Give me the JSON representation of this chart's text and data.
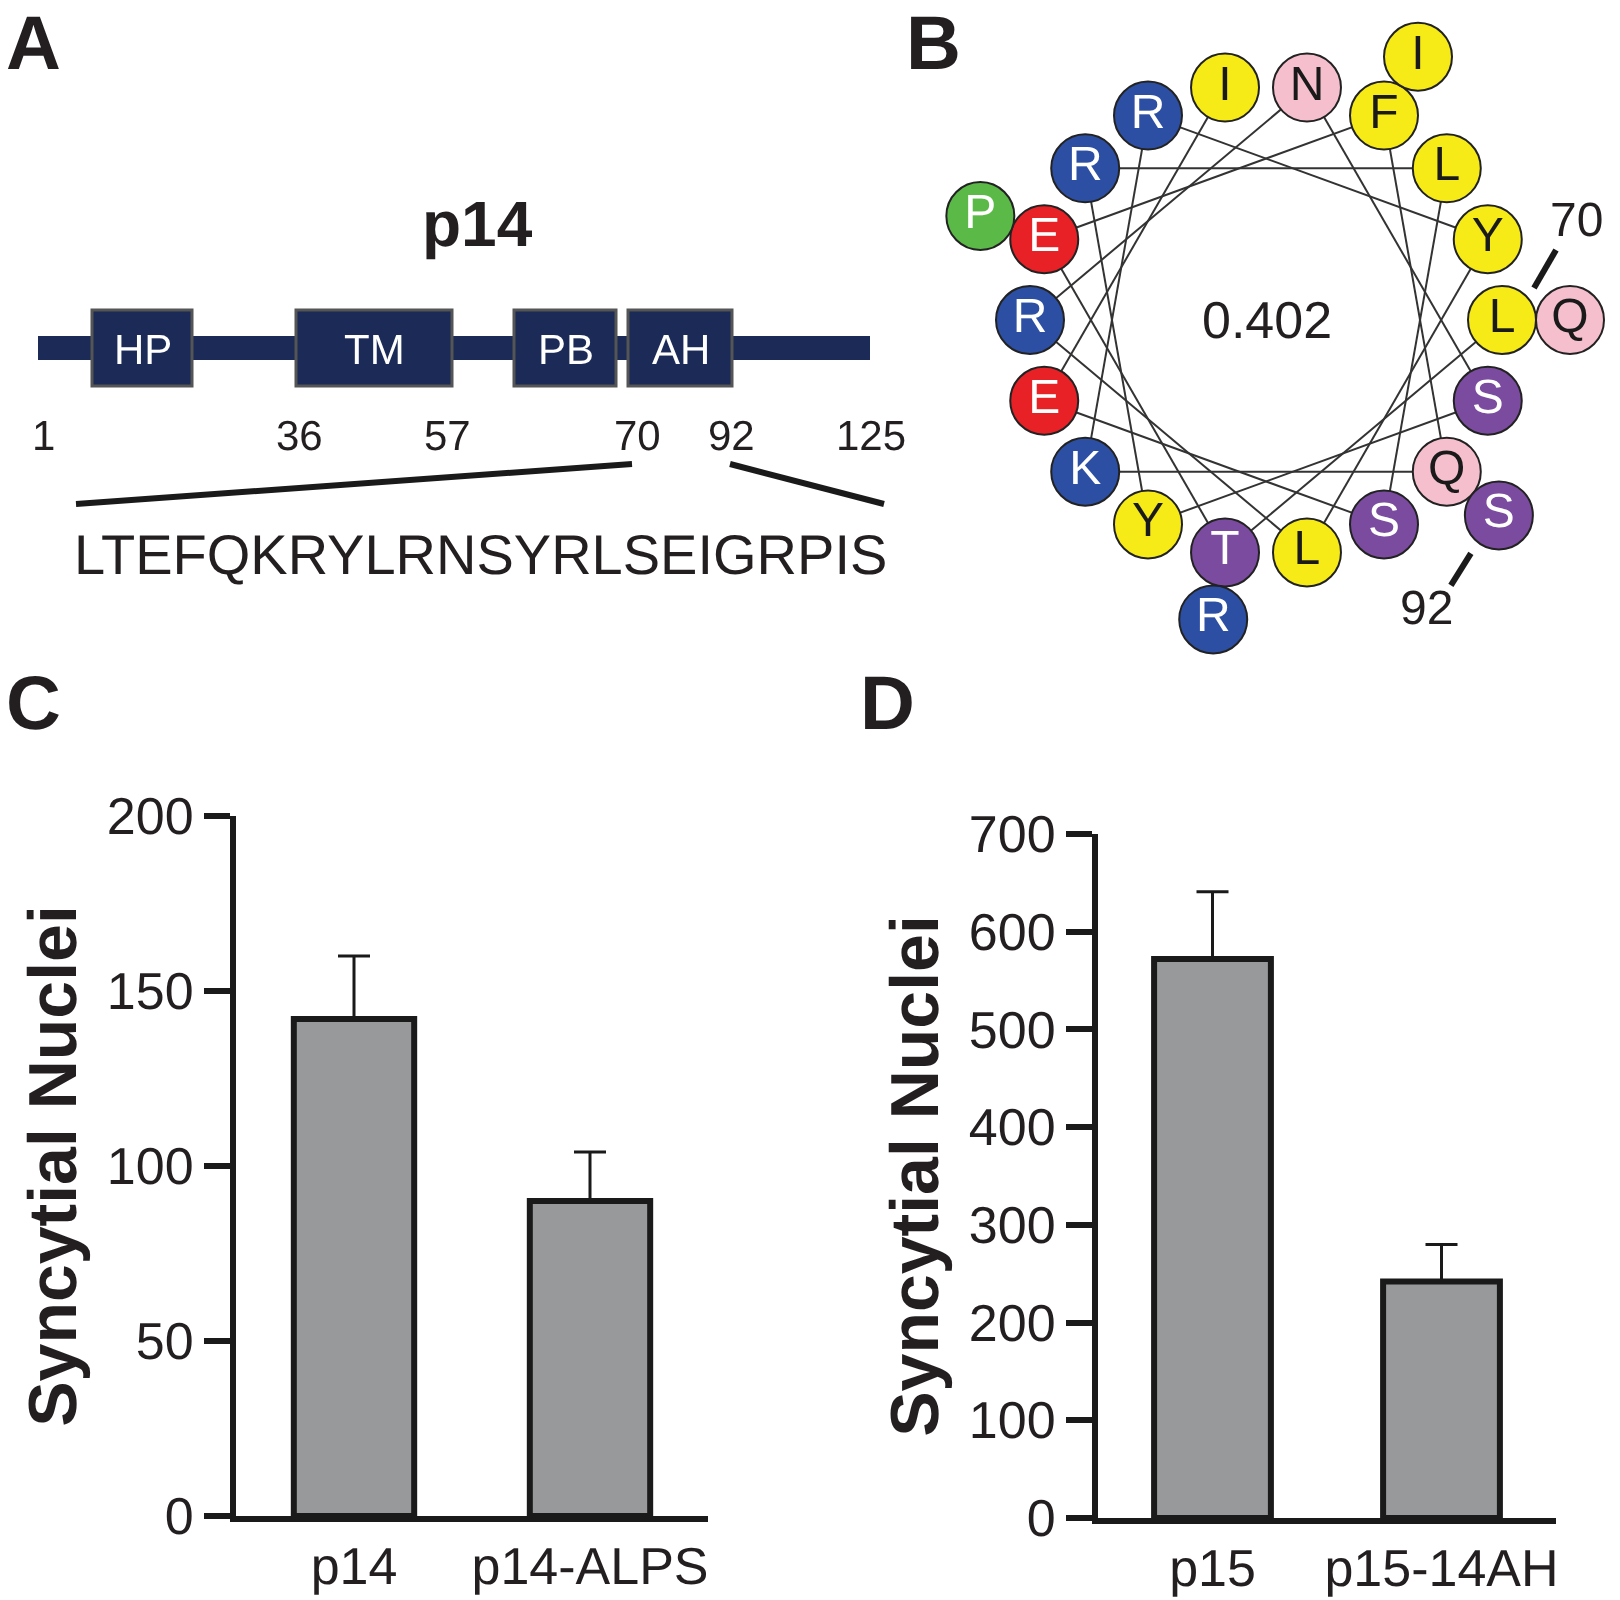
{
  "chart_data": [
    {
      "type": "other",
      "title": "A",
      "subtitle": "p14",
      "categories": [
        "HP",
        "TM",
        "PB",
        "AH"
      ],
      "color": "#1b2a57",
      "annotations": [
        "1",
        "36",
        "57",
        "70",
        "92",
        "125",
        "LTEFQKRYLRNSYRLSEIGRPIS"
      ]
    },
    {
      "type": "other",
      "title": "B",
      "categories": [
        "L",
        "T",
        "E",
        "F",
        "Q",
        "K",
        "R",
        "Y",
        "L",
        "R",
        "N",
        "S",
        "Y",
        "R",
        "L",
        "S",
        "E",
        "I",
        "Q",
        "R",
        "P",
        "I",
        "S"
      ],
      "colors": [
        "#f6eb16",
        "#7a4b9e",
        "#e82127",
        "#f6eb16",
        "#f6bfce",
        "#2c4fa3",
        "#2c4fa3",
        "#f6eb16",
        "#f6eb16",
        "#2c4fa3",
        "#f6bfce",
        "#7a4b9e",
        "#f6eb16",
        "#2c4fa3",
        "#f6eb16",
        "#7a4b9e",
        "#e82127",
        "#f6eb16",
        "#f6bfce",
        "#2c4fa3",
        "#5bb947",
        "#f6eb16",
        "#7a4b9e"
      ],
      "annotations": [
        "0.402",
        "70",
        "92"
      ]
    },
    {
      "type": "bar",
      "title": "C",
      "ylabel": "Syncytial Nuclei",
      "categories": [
        "p14",
        "p14-ALPS"
      ],
      "values": [
        142,
        90
      ],
      "errors": [
        [
          142,
          160
        ],
        [
          90,
          104
        ]
      ],
      "color": "#98999b",
      "ylim": [
        0,
        200
      ],
      "yticks": [
        0,
        50,
        100,
        150,
        200
      ]
    },
    {
      "type": "bar",
      "title": "D",
      "ylabel": "Syncytial Nuclei",
      "categories": [
        "p15",
        "p15-14AH"
      ],
      "values": [
        572,
        242
      ],
      "errors": [
        [
          572,
          641
        ],
        [
          242,
          280
        ]
      ],
      "color": "#98999b",
      "ylim": [
        0,
        700
      ],
      "yticks": [
        0,
        100,
        200,
        300,
        400,
        500,
        600,
        700
      ]
    }
  ]
}
